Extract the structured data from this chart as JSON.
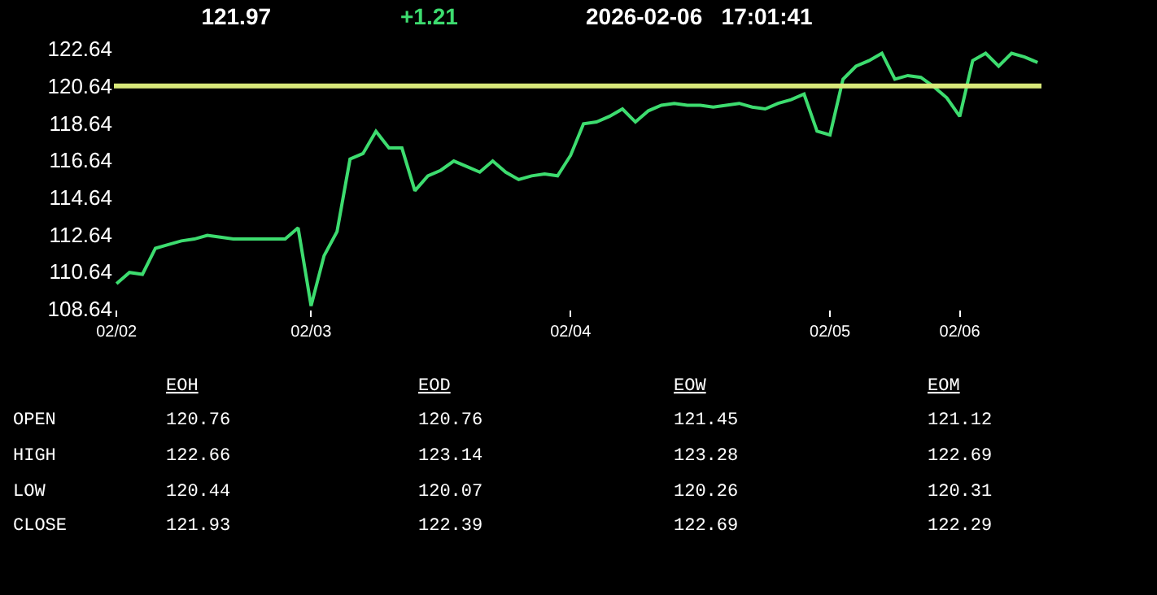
{
  "chart_data": {
    "type": "line",
    "title": "121.97",
    "subtitle": "+1.21",
    "categories": [
      "02/02",
      null,
      null,
      null,
      null,
      null,
      null,
      null,
      null,
      null,
      null,
      null,
      null,
      null,
      null,
      "02/03",
      null,
      null,
      null,
      null,
      null,
      null,
      null,
      null,
      null,
      null,
      null,
      null,
      null,
      null,
      null,
      null,
      null,
      null,
      null,
      "02/04",
      null,
      null,
      null,
      null,
      null,
      null,
      null,
      null,
      null,
      null,
      null,
      null,
      null,
      null,
      null,
      null,
      null,
      null,
      null,
      "02/05",
      null,
      null,
      null,
      null,
      null,
      null,
      null,
      null,
      null,
      "02/06",
      null,
      null,
      null,
      null,
      null,
      null
    ],
    "series": [
      {
        "color": "#3ddc6f",
        "values": [
          110.0,
          110.6,
          110.5,
          111.9,
          112.1,
          112.3,
          112.4,
          112.6,
          112.5,
          112.4,
          112.4,
          112.4,
          112.4,
          112.4,
          113.0,
          108.8,
          111.5,
          112.8,
          116.7,
          117.0,
          118.2,
          117.3,
          117.3,
          115.0,
          115.8,
          116.1,
          116.6,
          116.3,
          116.0,
          116.6,
          116.0,
          115.6,
          115.8,
          115.9,
          115.8,
          116.9,
          118.6,
          118.7,
          119.0,
          119.4,
          118.7,
          119.3,
          119.6,
          119.7,
          119.6,
          119.6,
          119.5,
          119.6,
          119.7,
          119.5,
          119.4,
          119.7,
          119.9,
          120.2,
          118.2,
          118.0,
          121.0,
          121.7,
          122.0,
          122.4,
          121.0,
          121.2,
          121.1,
          120.6,
          120.0,
          119.0,
          122.0,
          122.4,
          121.7,
          122.4,
          122.2,
          121.9
        ]
      }
    ],
    "ylim": [
      108.64,
      122.64
    ],
    "yticks": [
      108.64,
      110.64,
      112.64,
      114.64,
      116.64,
      118.64,
      120.64,
      122.64
    ],
    "grid": false,
    "marker": "none",
    "line_style": "solid",
    "ref_lines": [
      {
        "axis": "y",
        "value": 120.64,
        "color": "#d8e87a"
      }
    ],
    "annotations": [
      "2026-02-06   17:01:41",
      "EOH",
      "EOD",
      "EOW",
      "EOM",
      "OPEN",
      "120.76",
      "120.76",
      "121.45",
      "121.12",
      "HIGH",
      "122.66",
      "123.14",
      "123.28",
      "122.69",
      "LOW",
      "120.44",
      "120.07",
      "120.26",
      "120.31",
      "CLOSE",
      "121.93",
      "122.39",
      "122.69",
      "122.29"
    ]
  }
}
